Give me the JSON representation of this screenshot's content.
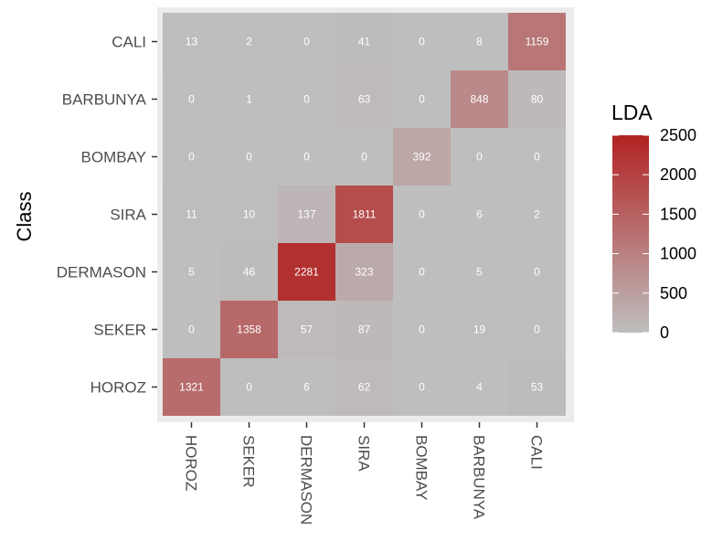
{
  "chart_data": {
    "type": "heatmap",
    "ylabel": "Class",
    "xlabel": "",
    "x_categories": [
      "HOROZ",
      "SEKER",
      "DERMASON",
      "SIRA",
      "BOMBAY",
      "BARBUNYA",
      "CALI"
    ],
    "y_categories": [
      "CALI",
      "BARBUNYA",
      "BOMBAY",
      "SIRA",
      "DERMASON",
      "SEKER",
      "HOROZ"
    ],
    "values": [
      [
        13,
        2,
        0,
        41,
        0,
        8,
        1159
      ],
      [
        0,
        1,
        0,
        63,
        0,
        848,
        80
      ],
      [
        0,
        0,
        0,
        0,
        392,
        0,
        0
      ],
      [
        11,
        10,
        137,
        1811,
        0,
        6,
        2
      ],
      [
        5,
        46,
        2281,
        323,
        0,
        5,
        0
      ],
      [
        0,
        1358,
        57,
        87,
        0,
        19,
        0
      ],
      [
        1321,
        0,
        6,
        62,
        0,
        4,
        53
      ]
    ],
    "legend": {
      "title": "LDA",
      "ticks": [
        0,
        500,
        1000,
        1500,
        2000,
        2500
      ],
      "range": [
        0,
        2500
      ],
      "low_color": "#bebebe",
      "high_color": "#b22222"
    },
    "panel_background": "#ebebeb"
  }
}
